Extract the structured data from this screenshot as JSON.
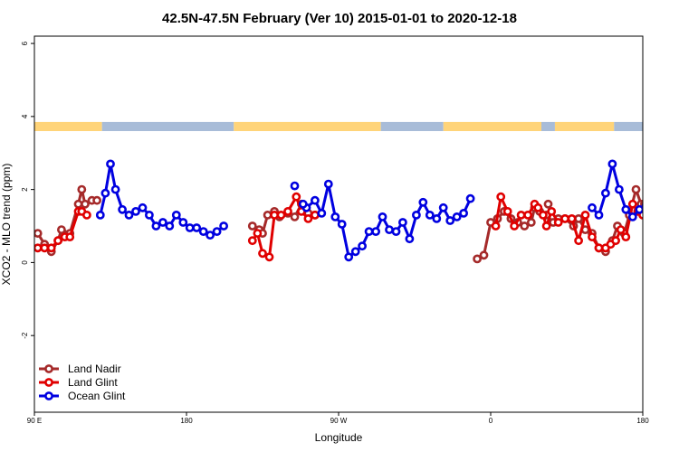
{
  "chart_data": {
    "type": "line",
    "title": "42.5N-47.5N February (Ver 10)   2015-01-01 to 2020-12-18",
    "xlabel": "Longitude",
    "ylabel": "XCO2 - MLO trend (ppm)",
    "xlim": [
      90,
      450
    ],
    "ylim": [
      -4.1,
      6.2
    ],
    "x_ticks": [
      {
        "value": 90,
        "label": "90 E"
      },
      {
        "value": 180,
        "label": "180"
      },
      {
        "value": 270,
        "label": "90 W"
      },
      {
        "value": 360,
        "label": "0"
      },
      {
        "value": 450,
        "label": "180"
      }
    ],
    "y_ticks": [
      {
        "value": -2,
        "label": "-2"
      },
      {
        "value": 0,
        "label": "0"
      },
      {
        "value": 2,
        "label": "2"
      },
      {
        "value": 4,
        "label": "4"
      },
      {
        "value": 6,
        "label": "6"
      }
    ],
    "grid": false,
    "legend_position": "bottom-left",
    "surface_band": {
      "y_range": [
        3.6,
        3.85
      ],
      "land_color": "#ffd479",
      "ocean_color": "#a8bcd8",
      "segments": [
        {
          "start": 90,
          "end": 130,
          "type": "land"
        },
        {
          "start": 130,
          "end": 208,
          "type": "ocean"
        },
        {
          "start": 208,
          "end": 295,
          "type": "land"
        },
        {
          "start": 295,
          "end": 332,
          "type": "ocean"
        },
        {
          "start": 332,
          "end": 390,
          "type": "land"
        },
        {
          "start": 390,
          "end": 398,
          "type": "ocean"
        },
        {
          "start": 398,
          "end": 433,
          "type": "land"
        },
        {
          "start": 433,
          "end": 450,
          "type": "ocean"
        }
      ]
    },
    "series": [
      {
        "name": "Land Nadir",
        "color": "#a52a2a",
        "segments": [
          [
            [
              92,
              0.8
            ],
            [
              96,
              0.5
            ],
            [
              100,
              0.3
            ],
            [
              104,
              0.6
            ],
            [
              106,
              0.9
            ],
            [
              111,
              0.8
            ],
            [
              116,
              1.6
            ],
            [
              118,
              2.0
            ],
            [
              120,
              1.6
            ],
            [
              124,
              1.7
            ],
            [
              127,
              1.7
            ]
          ],
          [
            [
              219,
              1.0
            ],
            [
              223,
              0.9
            ],
            [
              225,
              0.8
            ],
            [
              228,
              1.3
            ],
            [
              232,
              1.4
            ],
            [
              235,
              1.25
            ],
            [
              240,
              1.35
            ],
            [
              244,
              1.25
            ],
            [
              248,
              1.6
            ],
            [
              252,
              1.35
            ],
            [
              256,
              1.3
            ]
          ],
          [
            [
              352,
              0.1
            ],
            [
              356,
              0.2
            ],
            [
              360,
              1.1
            ],
            [
              364,
              1.2
            ],
            [
              368,
              1.4
            ],
            [
              372,
              1.2
            ],
            [
              376,
              1.1
            ],
            [
              380,
              1.0
            ],
            [
              384,
              1.1
            ],
            [
              386,
              1.5
            ],
            [
              389,
              1.4
            ],
            [
              393,
              1.3
            ],
            [
              397,
              1.1
            ],
            [
              400,
              1.2
            ],
            [
              404,
              1.2
            ],
            [
              409,
              1.0
            ],
            [
              412,
              1.2
            ],
            [
              416,
              0.9
            ],
            [
              420,
              0.8
            ],
            [
              424,
              0.4
            ],
            [
              428,
              0.3
            ],
            [
              432,
              0.6
            ],
            [
              435,
              1.0
            ],
            [
              439,
              0.8
            ],
            [
              442,
              1.3
            ],
            [
              446,
              2.0
            ],
            [
              449,
              1.6
            ],
            [
              451,
              1.6
            ]
          ]
        ]
      },
      {
        "name": "Land Glint",
        "color": "#e00000",
        "segments": [
          [
            [
              92,
              0.4
            ],
            [
              96,
              0.4
            ],
            [
              100,
              0.4
            ],
            [
              104,
              0.6
            ],
            [
              108,
              0.7
            ],
            [
              111,
              0.7
            ],
            [
              116,
              1.4
            ],
            [
              118,
              1.4
            ],
            [
              121,
              1.3
            ]
          ],
          [
            [
              219,
              0.6
            ],
            [
              222,
              0.8
            ],
            [
              225,
              0.25
            ],
            [
              229,
              0.15
            ],
            [
              232,
              1.3
            ],
            [
              236,
              1.3
            ],
            [
              240,
              1.4
            ],
            [
              245,
              1.8
            ],
            [
              248,
              1.4
            ],
            [
              252,
              1.2
            ],
            [
              256,
              1.3
            ]
          ],
          [
            [
              363,
              1.0
            ],
            [
              366,
              1.8
            ],
            [
              370,
              1.4
            ],
            [
              374,
              1.0
            ],
            [
              378,
              1.3
            ],
            [
              382,
              1.3
            ],
            [
              386,
              1.6
            ],
            [
              388,
              1.5
            ],
            [
              391,
              1.3
            ],
            [
              393,
              1.0
            ],
            [
              396,
              1.4
            ],
            [
              400,
              1.1
            ],
            [
              404,
              1.2
            ],
            [
              408,
              1.2
            ],
            [
              412,
              0.6
            ],
            [
              416,
              1.3
            ],
            [
              420,
              0.7
            ],
            [
              424,
              0.4
            ],
            [
              428,
              0.4
            ],
            [
              431,
              0.5
            ],
            [
              434,
              0.6
            ],
            [
              437,
              0.9
            ],
            [
              440,
              0.7
            ],
            [
              444,
              1.6
            ],
            [
              447,
              1.4
            ],
            [
              450,
              1.3
            ],
            [
              454,
              1.7
            ]
          ]
        ]
      },
      {
        "name": "Ocean Glint",
        "color": "#0000e0",
        "segments": [
          [
            [
              129,
              1.3
            ],
            [
              132,
              1.9
            ],
            [
              135,
              2.7
            ],
            [
              138,
              2.0
            ],
            [
              142,
              1.45
            ],
            [
              146,
              1.3
            ],
            [
              150,
              1.4
            ],
            [
              154,
              1.5
            ],
            [
              158,
              1.3
            ],
            [
              162,
              1.0
            ],
            [
              166,
              1.1
            ],
            [
              170,
              1.0
            ],
            [
              174,
              1.3
            ],
            [
              178,
              1.1
            ],
            [
              182,
              0.95
            ],
            [
              186,
              0.95
            ],
            [
              190,
              0.85
            ],
            [
              194,
              0.75
            ],
            [
              198,
              0.85
            ],
            [
              202,
              1.0
            ]
          ],
          [
            [
              251,
              1.5
            ],
            [
              256,
              1.7
            ],
            [
              260,
              1.35
            ],
            [
              264,
              2.15
            ],
            [
              268,
              1.25
            ],
            [
              272,
              1.05
            ],
            [
              276,
              0.15
            ],
            [
              280,
              0.3
            ],
            [
              284,
              0.45
            ],
            [
              288,
              0.85
            ],
            [
              292,
              0.85
            ],
            [
              296,
              1.25
            ],
            [
              300,
              0.9
            ],
            [
              304,
              0.85
            ],
            [
              308,
              1.1
            ],
            [
              312,
              0.65
            ],
            [
              316,
              1.3
            ],
            [
              320,
              1.65
            ],
            [
              324,
              1.3
            ],
            [
              328,
              1.2
            ],
            [
              332,
              1.5
            ],
            [
              336,
              1.15
            ],
            [
              340,
              1.25
            ],
            [
              344,
              1.35
            ],
            [
              348,
              1.75
            ]
          ],
          [
            [
              420,
              1.5
            ],
            [
              424,
              1.3
            ],
            [
              428,
              1.9
            ],
            [
              432,
              2.7
            ],
            [
              436,
              2.0
            ],
            [
              440,
              1.45
            ],
            [
              444,
              1.25
            ],
            [
              448,
              1.45
            ],
            [
              452,
              1.55
            ]
          ]
        ]
      }
    ],
    "extra_points": [
      {
        "series": "Ocean Glint",
        "points": [
          [
            244,
            2.1
          ],
          [
            249,
            1.6
          ]
        ]
      },
      {
        "series": "Land Nadir",
        "points": [
          [
            394,
            1.6
          ]
        ]
      }
    ]
  }
}
